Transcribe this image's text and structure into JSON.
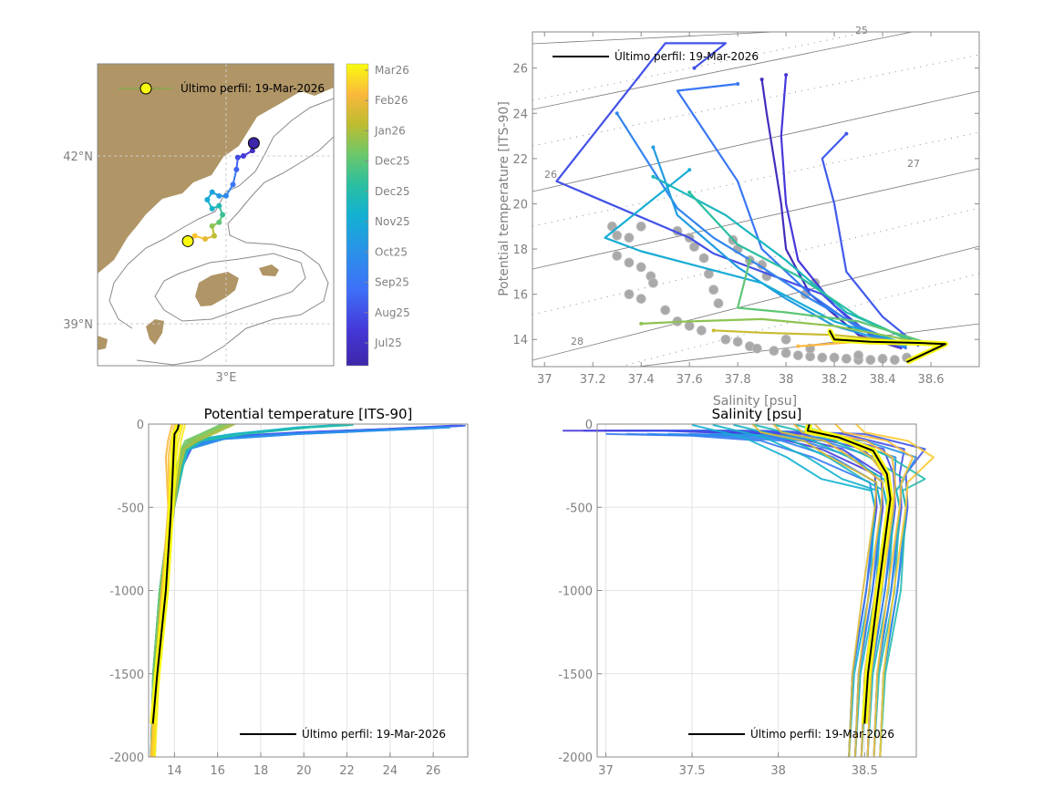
{
  "chart_data": [
    {
      "id": "map",
      "type": "scatter",
      "title": "",
      "xlabel": "",
      "ylabel": "",
      "x_ticks": [
        "3°E"
      ],
      "y_ticks": [
        "42°N",
        "39°N"
      ],
      "xlim": [
        1.2,
        4.6
      ],
      "ylim": [
        38.6,
        42.6
      ],
      "legend": {
        "label": "Último perfil: 19-Mar-2026",
        "placement": "top-left"
      },
      "land_color": "#b09566",
      "track": [
        {
          "lon": 3.45,
          "lat": 41.55,
          "t": 0.02
        },
        {
          "lon": 3.43,
          "lat": 41.45,
          "t": 0.06
        },
        {
          "lon": 3.3,
          "lat": 41.38,
          "t": 0.12
        },
        {
          "lon": 3.22,
          "lat": 41.36,
          "t": 0.16
        },
        {
          "lon": 3.2,
          "lat": 41.2,
          "t": 0.22
        },
        {
          "lon": 3.15,
          "lat": 41.0,
          "t": 0.28
        },
        {
          "lon": 3.05,
          "lat": 40.85,
          "t": 0.34
        },
        {
          "lon": 2.95,
          "lat": 40.85,
          "t": 0.4
        },
        {
          "lon": 2.85,
          "lat": 40.9,
          "t": 0.44
        },
        {
          "lon": 2.78,
          "lat": 40.8,
          "t": 0.48
        },
        {
          "lon": 2.85,
          "lat": 40.68,
          "t": 0.52
        },
        {
          "lon": 2.95,
          "lat": 40.72,
          "t": 0.56
        },
        {
          "lon": 3.0,
          "lat": 40.6,
          "t": 0.62
        },
        {
          "lon": 2.95,
          "lat": 40.5,
          "t": 0.68
        },
        {
          "lon": 2.85,
          "lat": 40.45,
          "t": 0.74
        },
        {
          "lon": 2.88,
          "lat": 40.32,
          "t": 0.8
        },
        {
          "lon": 2.75,
          "lat": 40.28,
          "t": 0.86
        },
        {
          "lon": 2.6,
          "lat": 40.32,
          "t": 0.92
        },
        {
          "lon": 2.5,
          "lat": 40.25,
          "t": 1.0
        }
      ],
      "first_position": {
        "lon": 3.45,
        "lat": 41.55
      },
      "last_position": {
        "lon": 2.5,
        "lat": 40.25
      }
    },
    {
      "id": "colorbar",
      "type": "heatmap",
      "colormap": "parula",
      "tick_labels": [
        "Mar26",
        "Feb26",
        "Jan26",
        "Dec25",
        "Dec25",
        "Nov25",
        "Oct25",
        "Sep25",
        "Aug25",
        "Jul25"
      ]
    },
    {
      "id": "ts-diagram",
      "type": "line",
      "title": "",
      "xlabel": "Salinity [psu]",
      "ylabel": "Potential temperature [ITS-90]",
      "xlim": [
        36.95,
        38.8
      ],
      "ylim": [
        12.8,
        27.6
      ],
      "x_ticks": [
        37,
        37.2,
        37.4,
        37.6,
        37.8,
        38,
        38.2,
        38.4,
        38.6
      ],
      "y_ticks": [
        14,
        16,
        18,
        20,
        22,
        24,
        26
      ],
      "legend": {
        "label": "Último perfil: 19-Mar-2026",
        "placement": "top-left"
      },
      "density_contours": [
        {
          "sigma": 25,
          "label": "25"
        },
        {
          "sigma": 26,
          "label": "26"
        },
        {
          "sigma": 27,
          "label": "27"
        },
        {
          "sigma": 28,
          "label": "28"
        }
      ],
      "series": [
        {
          "name": "profile-jul",
          "t": 0.05,
          "S": [
            38.48,
            38.3,
            38.1,
            38.0,
            37.98,
            37.95,
            37.92,
            37.9
          ],
          "T": [
            13.6,
            14.2,
            16.0,
            18.0,
            20.0,
            22.0,
            24.0,
            25.5
          ]
        },
        {
          "name": "profile-aug-a",
          "t": 0.12,
          "S": [
            38.48,
            38.35,
            38.2,
            38.05,
            38.0,
            37.98,
            38.0
          ],
          "T": [
            13.6,
            14.2,
            15.5,
            17.5,
            20.0,
            23.0,
            25.7
          ]
        },
        {
          "name": "profile-aug-b",
          "t": 0.18,
          "S": [
            38.5,
            38.3,
            38.15,
            37.7,
            37.6,
            37.05,
            37.5,
            37.75,
            37.62
          ],
          "T": [
            13.6,
            14.5,
            16.0,
            17.8,
            18.5,
            21.0,
            27.1,
            27.1,
            26.0
          ]
        },
        {
          "name": "profile-aug-c",
          "t": 0.2,
          "S": [
            38.55,
            38.4,
            38.25,
            38.2,
            38.15,
            38.25
          ],
          "T": [
            13.7,
            15.0,
            17.0,
            20.0,
            22.0,
            23.1
          ]
        },
        {
          "name": "profile-sep-a",
          "t": 0.28,
          "S": [
            38.5,
            38.3,
            38.1,
            37.9,
            37.8,
            37.55,
            37.8
          ],
          "T": [
            13.6,
            14.5,
            16.0,
            18.0,
            21.0,
            25.0,
            25.3
          ]
        },
        {
          "name": "profile-sep-b",
          "t": 0.33,
          "S": [
            38.5,
            38.3,
            38.1,
            37.9,
            37.7,
            37.55,
            37.3
          ],
          "T": [
            13.7,
            14.6,
            15.8,
            17.2,
            18.5,
            19.8,
            24.0
          ]
        },
        {
          "name": "profile-oct-a",
          "t": 0.42,
          "S": [
            38.5,
            38.2,
            38.0,
            37.8,
            37.55,
            37.45
          ],
          "T": [
            13.7,
            14.6,
            15.8,
            17.2,
            19.5,
            22.5
          ]
        },
        {
          "name": "profile-oct-b",
          "t": 0.48,
          "S": [
            38.5,
            38.2,
            37.9,
            37.4,
            37.25,
            37.6
          ],
          "T": [
            13.8,
            14.8,
            16.5,
            17.9,
            18.5,
            21.5
          ]
        },
        {
          "name": "profile-nov-a",
          "t": 0.54,
          "S": [
            38.55,
            38.25,
            38.0,
            37.75,
            37.45
          ],
          "T": [
            13.8,
            15.2,
            17.5,
            19.5,
            21.2
          ]
        },
        {
          "name": "profile-nov-b",
          "t": 0.6,
          "S": [
            38.55,
            38.3,
            38.05,
            37.8,
            37.6
          ],
          "T": [
            13.8,
            15.0,
            16.8,
            18.2,
            20.5
          ]
        },
        {
          "name": "profile-dec-a",
          "t": 0.68,
          "S": [
            38.6,
            38.3,
            38.0,
            37.8,
            37.85
          ],
          "T": [
            13.8,
            14.8,
            15.2,
            15.4,
            17.5
          ]
        },
        {
          "name": "profile-dec-b",
          "t": 0.74,
          "S": [
            38.6,
            38.2,
            37.9,
            37.6,
            37.4
          ],
          "T": [
            13.8,
            14.6,
            14.9,
            14.8,
            14.7
          ]
        },
        {
          "name": "profile-jan",
          "t": 0.82,
          "S": [
            38.6,
            38.2,
            37.9,
            37.7
          ],
          "T": [
            13.8,
            14.2,
            14.3,
            14.4
          ]
        },
        {
          "name": "profile-feb",
          "t": 0.9,
          "S": [
            38.6,
            38.3,
            38.05
          ],
          "T": [
            13.8,
            13.9,
            13.7
          ]
        },
        {
          "name": "profile-mar",
          "t": 1.0,
          "S": [
            38.5,
            38.66,
            38.4,
            38.2,
            38.18
          ],
          "T": [
            13.0,
            13.8,
            13.9,
            14.0,
            14.4
          ]
        }
      ],
      "last_profile": {
        "S": [
          38.5,
          38.66,
          38.55,
          38.35,
          38.2,
          38.18
        ],
        "T": [
          13.0,
          13.8,
          13.85,
          13.9,
          14.0,
          14.4
        ]
      },
      "reference_points": [
        [
          37.28,
          19.0
        ],
        [
          37.3,
          18.6
        ],
        [
          37.35,
          18.5
        ],
        [
          37.4,
          19.0
        ],
        [
          37.3,
          17.7
        ],
        [
          37.35,
          17.4
        ],
        [
          37.4,
          17.2
        ],
        [
          37.44,
          16.8
        ],
        [
          37.45,
          16.5
        ],
        [
          37.35,
          16.0
        ],
        [
          37.4,
          15.8
        ],
        [
          37.5,
          15.3
        ],
        [
          37.55,
          18.8
        ],
        [
          37.6,
          18.5
        ],
        [
          37.62,
          18.1
        ],
        [
          37.66,
          17.6
        ],
        [
          37.68,
          16.9
        ],
        [
          37.7,
          16.2
        ],
        [
          37.72,
          15.6
        ],
        [
          37.78,
          18.4
        ],
        [
          37.8,
          18.0
        ],
        [
          37.85,
          17.5
        ],
        [
          37.9,
          17.3
        ],
        [
          37.92,
          16.8
        ],
        [
          37.55,
          14.8
        ],
        [
          37.6,
          14.6
        ],
        [
          37.65,
          14.4
        ],
        [
          37.75,
          14.0
        ],
        [
          37.8,
          13.9
        ],
        [
          37.85,
          13.7
        ],
        [
          37.88,
          13.6
        ],
        [
          37.95,
          13.5
        ],
        [
          38.0,
          13.4
        ],
        [
          38.05,
          13.3
        ],
        [
          38.1,
          13.25
        ],
        [
          38.15,
          13.2
        ],
        [
          38.2,
          13.2
        ],
        [
          38.25,
          13.15
        ],
        [
          38.3,
          13.1
        ],
        [
          38.35,
          13.1
        ],
        [
          38.4,
          13.15
        ],
        [
          38.45,
          13.1
        ],
        [
          38.5,
          13.2
        ],
        [
          38.0,
          14.0
        ],
        [
          38.1,
          13.6
        ],
        [
          38.3,
          13.3
        ],
        [
          38.08,
          16.0
        ],
        [
          38.12,
          16.5
        ]
      ]
    },
    {
      "id": "temperature-profile",
      "type": "line",
      "title": "Potential temperature [ITS-90]",
      "xlabel": "",
      "ylabel": "",
      "xlim": [
        12.8,
        27.6
      ],
      "ylim": [
        -2000,
        0
      ],
      "x_ticks": [
        14,
        16,
        18,
        20,
        22,
        24,
        26
      ],
      "y_ticks": [
        0,
        -500,
        -1000,
        -1500,
        -2000
      ],
      "legend": {
        "label": "Último perfil: 19-Mar-2026",
        "placement": "bottom-right"
      },
      "series": [
        {
          "name": "summer",
          "t": 0.15,
          "x": [
            27.2,
            24.0,
            20.0,
            16.0,
            14.8,
            14.3,
            13.9,
            13.4,
            13.1,
            13.0
          ],
          "y": [
            -10,
            -30,
            -50,
            -80,
            -120,
            -250,
            -500,
            -1000,
            -1500,
            -2000
          ]
        },
        {
          "name": "late-summer",
          "t": 0.3,
          "x": [
            26.5,
            23.0,
            19.5,
            16.0,
            14.6,
            14.3,
            13.9,
            13.4,
            13.1,
            13.0
          ],
          "y": [
            -20,
            -40,
            -60,
            -90,
            -150,
            -250,
            -500,
            -1000,
            -1500,
            -2000
          ]
        },
        {
          "name": "autumn",
          "t": 0.5,
          "x": [
            22.0,
            20.0,
            17.0,
            15.0,
            14.5,
            14.3,
            13.9,
            13.4,
            13.1,
            13.0
          ],
          "y": [
            -5,
            -20,
            -60,
            -100,
            -160,
            -260,
            -500,
            -1000,
            -1500,
            -2000
          ]
        },
        {
          "name": "early-winter",
          "t": 0.7,
          "x": [
            16.5,
            16.0,
            15.5,
            14.8,
            14.4,
            14.2,
            13.9,
            13.4,
            13.1,
            13.0
          ],
          "y": [
            0,
            -30,
            -60,
            -100,
            -150,
            -250,
            -500,
            -1000,
            -1500,
            -2000
          ]
        },
        {
          "name": "winter",
          "t": 0.9,
          "x": [
            14.2,
            14.1,
            14.0,
            13.9,
            13.8,
            13.5,
            13.2,
            13.0
          ],
          "y": [
            0,
            -50,
            -100,
            -200,
            -500,
            -1000,
            -1500,
            -2000
          ]
        }
      ],
      "last_profile": {
        "x": [
          14.2,
          14.15,
          14.0,
          13.95,
          13.85,
          13.6,
          13.2,
          13.0
        ],
        "y": [
          0,
          -30,
          -60,
          -200,
          -500,
          -1000,
          -1500,
          -1800
        ]
      }
    },
    {
      "id": "salinity-profile",
      "type": "line",
      "title": "Salinity [psu]",
      "xlabel": "",
      "ylabel": "",
      "xlim": [
        36.95,
        38.8
      ],
      "ylim": [
        -2000,
        0
      ],
      "x_ticks": [
        37,
        37.5,
        38,
        38.5
      ],
      "y_ticks": [
        0,
        -500,
        -1000,
        -1500,
        -2000
      ],
      "legend": {
        "label": "Último perfil: 19-Mar-2026",
        "placement": "bottom-right"
      },
      "series": [
        {
          "name": "summer",
          "t": 0.12,
          "x": [
            37.05,
            37.6,
            38.2,
            38.55,
            38.65,
            38.66,
            38.6,
            38.52,
            38.5
          ],
          "y": [
            -40,
            -40,
            -60,
            -150,
            -300,
            -500,
            -1000,
            -1500,
            -2000
          ]
        },
        {
          "name": "late-summer",
          "t": 0.3,
          "x": [
            37.3,
            37.8,
            38.2,
            38.5,
            38.62,
            38.65,
            38.6,
            38.52,
            38.5
          ],
          "y": [
            -60,
            -70,
            -100,
            -200,
            -350,
            -500,
            -1000,
            -1500,
            -2000
          ]
        },
        {
          "name": "autumn",
          "t": 0.5,
          "x": [
            37.8,
            38.1,
            38.35,
            38.55,
            38.63,
            38.65,
            38.62,
            38.53,
            38.5
          ],
          "y": [
            -5,
            -80,
            -200,
            -330,
            -400,
            -500,
            -1000,
            -1500,
            -2000
          ]
        },
        {
          "name": "winter",
          "t": 0.85,
          "x": [
            38.15,
            38.2,
            38.45,
            38.6,
            38.66,
            38.65,
            38.58,
            38.52,
            38.5
          ],
          "y": [
            0,
            -50,
            -100,
            -200,
            -350,
            -500,
            -1000,
            -1500,
            -2000
          ]
        }
      ],
      "last_profile": {
        "x": [
          38.18,
          38.17,
          38.35,
          38.55,
          38.63,
          38.65,
          38.58,
          38.52,
          38.5
        ],
        "y": [
          0,
          -40,
          -80,
          -160,
          -300,
          -450,
          -1000,
          -1500,
          -1800
        ]
      }
    }
  ]
}
